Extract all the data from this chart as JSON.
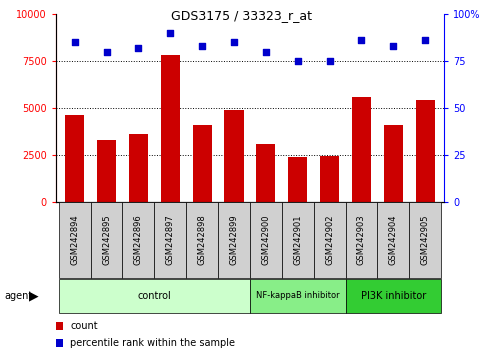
{
  "title": "GDS3175 / 33323_r_at",
  "samples": [
    "GSM242894",
    "GSM242895",
    "GSM242896",
    "GSM242897",
    "GSM242898",
    "GSM242899",
    "GSM242900",
    "GSM242901",
    "GSM242902",
    "GSM242903",
    "GSM242904",
    "GSM242905"
  ],
  "counts": [
    4600,
    3300,
    3600,
    7800,
    4100,
    4900,
    3100,
    2400,
    2450,
    5600,
    4100,
    5400
  ],
  "percentiles": [
    85,
    80,
    82,
    90,
    83,
    85,
    80,
    75,
    75,
    86,
    83,
    86
  ],
  "groups": [
    {
      "label": "control",
      "start": 0,
      "end": 6,
      "color": "#ccffcc"
    },
    {
      "label": "NF-kappaB inhibitor",
      "start": 6,
      "end": 9,
      "color": "#88ee88"
    },
    {
      "label": "PI3K inhibitor",
      "start": 9,
      "end": 12,
      "color": "#33cc33"
    }
  ],
  "bar_color": "#cc0000",
  "dot_color": "#0000cc",
  "ylim_left": [
    0,
    10000
  ],
  "ylim_right": [
    0,
    100
  ],
  "yticks_left": [
    0,
    2500,
    5000,
    7500,
    10000
  ],
  "yticks_right": [
    0,
    25,
    50,
    75,
    100
  ],
  "grid_values": [
    2500,
    5000,
    7500
  ],
  "agent_label": "agent",
  "legend_count_label": "count",
  "legend_pct_label": "percentile rank within the sample",
  "bar_width": 0.6,
  "tick_gray": "#d0d0d0",
  "spine_color": "#000000",
  "fig_bg": "#ffffff"
}
